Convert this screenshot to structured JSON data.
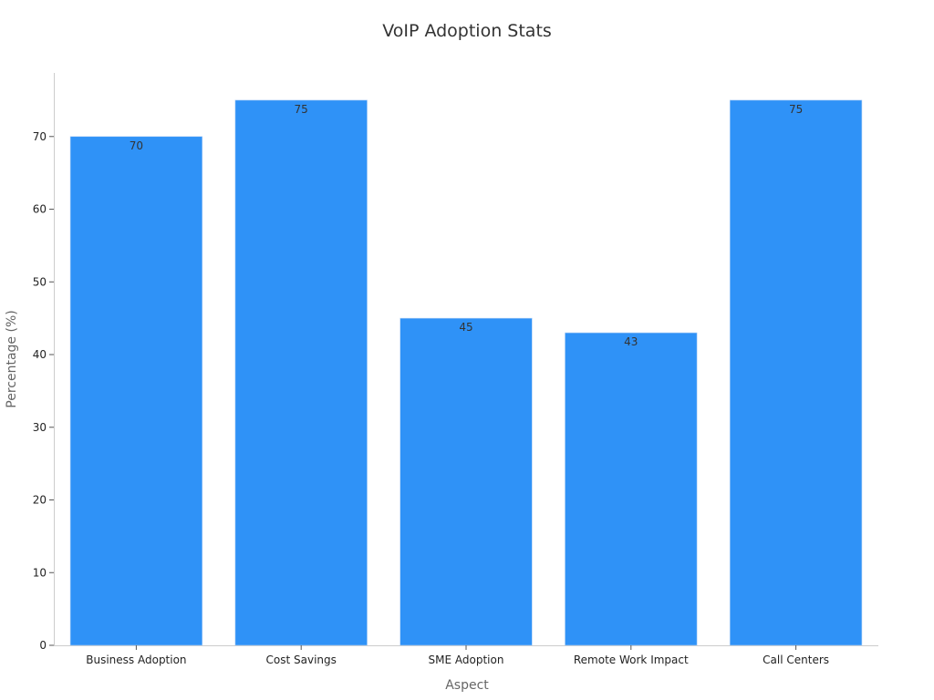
{
  "chart_data": {
    "type": "bar",
    "title": "VoIP Adoption Stats",
    "xlabel": "Aspect",
    "ylabel": "Percentage (%)",
    "categories": [
      "Business Adoption",
      "Cost Savings",
      "SME Adoption",
      "Remote Work Impact",
      "Call Centers"
    ],
    "values": [
      70,
      75,
      45,
      43,
      75
    ],
    "data_labels": [
      "70",
      "75",
      "45",
      "43",
      "75"
    ],
    "ylim": [
      0,
      78.75
    ],
    "yticks": [
      0,
      10,
      20,
      30,
      40,
      50,
      60,
      70
    ],
    "grid": false,
    "legend": "none",
    "bar_color": "#2f92f7"
  }
}
